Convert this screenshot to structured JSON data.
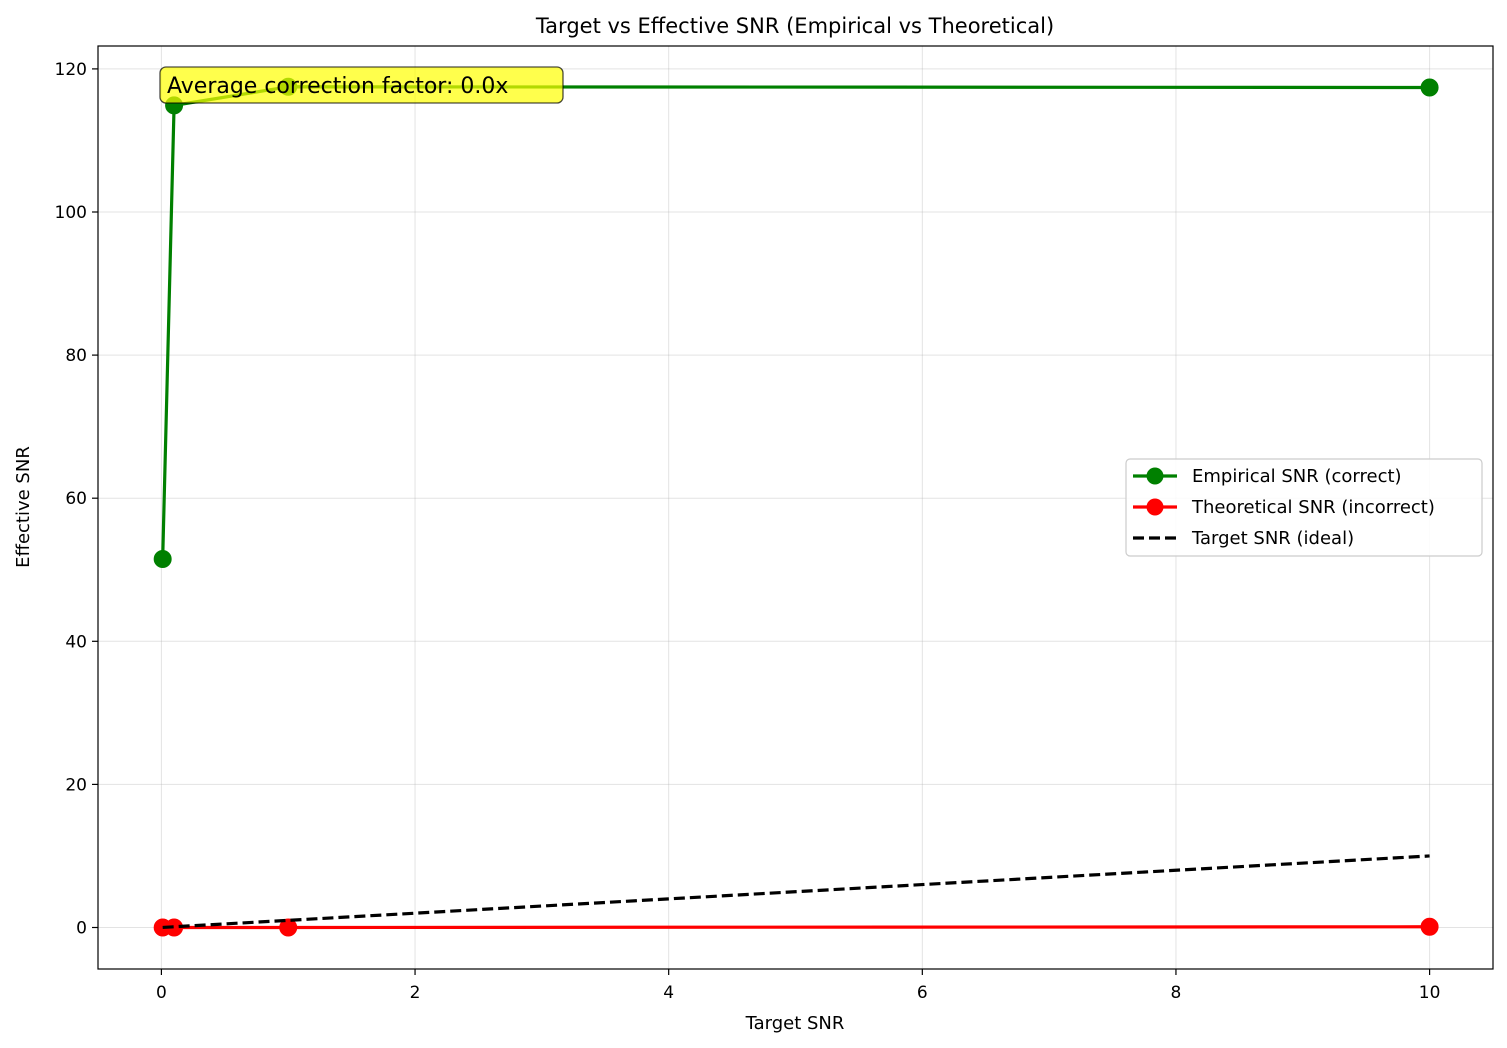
{
  "chart_data": {
    "type": "line",
    "title": "Target vs Effective SNR (Empirical vs Theoretical)",
    "xlabel": "Target SNR",
    "ylabel": "Effective SNR",
    "xlim": [
      -0.5,
      10.5
    ],
    "ylim": [
      -5.8,
      123.2
    ],
    "xticks": [
      0,
      2,
      4,
      6,
      8,
      10
    ],
    "yticks": [
      0,
      20,
      40,
      60,
      80,
      100,
      120
    ],
    "grid": true,
    "legend_position": "center-right",
    "series": [
      {
        "name": "Empirical SNR (correct)",
        "color": "#008000",
        "style": "solid",
        "marker": "circle",
        "x": [
          0.01,
          0.1,
          1,
          10
        ],
        "y": [
          51.5,
          114.9,
          117.5,
          117.4
        ]
      },
      {
        "name": "Theoretical SNR (incorrect)",
        "color": "#ff0000",
        "style": "solid",
        "marker": "circle",
        "x": [
          0.01,
          0.1,
          1,
          10
        ],
        "y": [
          0.0,
          0.0,
          0.0,
          0.1
        ]
      },
      {
        "name": "Target SNR (ideal)",
        "color": "#000000",
        "style": "dashed",
        "marker": "none",
        "x": [
          0.01,
          0.1,
          1,
          10
        ],
        "y": [
          0.01,
          0.1,
          1,
          10
        ]
      }
    ],
    "annotation": {
      "text": "Average correction factor: 0.0x",
      "background": "#ffff00"
    }
  }
}
